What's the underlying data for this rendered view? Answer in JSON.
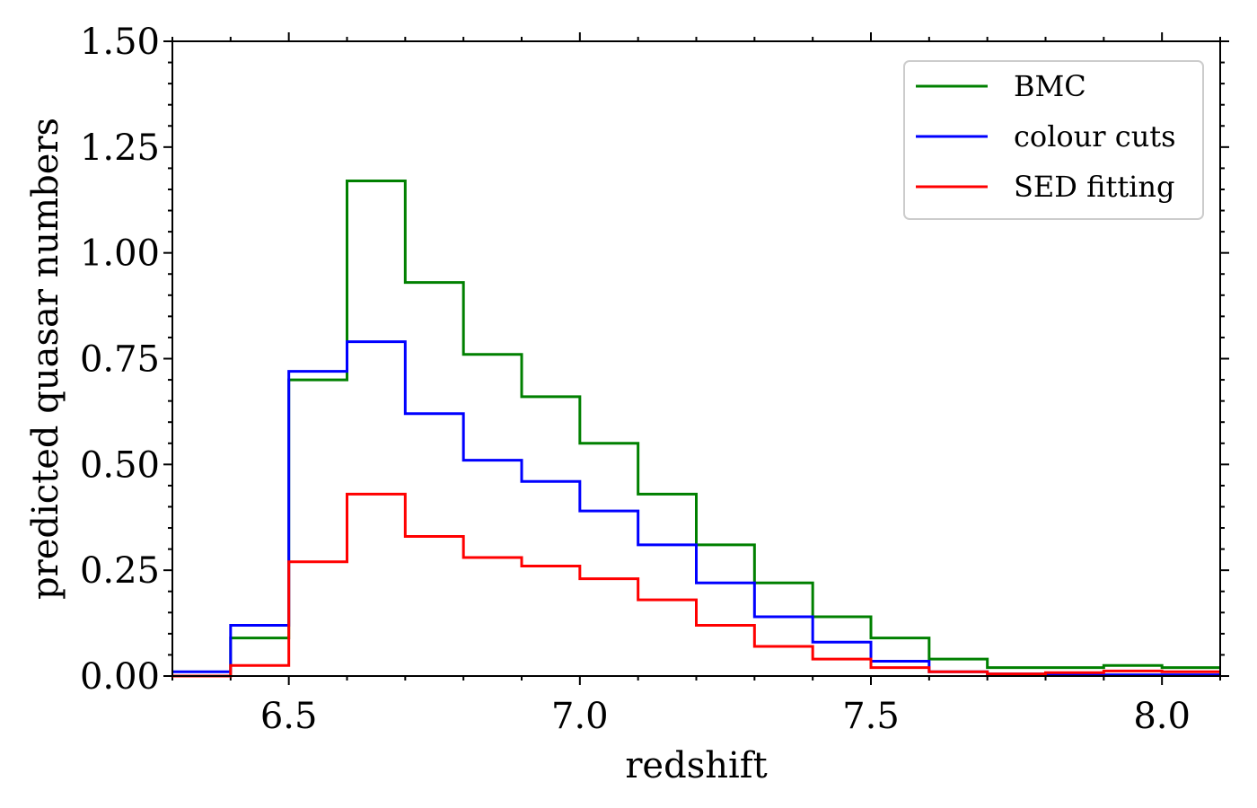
{
  "chart_data": {
    "type": "step-histogram",
    "xlabel": "redshift",
    "ylabel": "predicted quasar numbers",
    "xlim": [
      6.3,
      8.1
    ],
    "ylim": [
      0.0,
      1.5
    ],
    "x_ticks": [
      6.5,
      7.0,
      7.5,
      8.0
    ],
    "x_tick_labels": [
      "6.5",
      "7.0",
      "7.5",
      "8.0"
    ],
    "y_ticks": [
      0.0,
      0.25,
      0.5,
      0.75,
      1.0,
      1.25,
      1.5
    ],
    "y_tick_labels": [
      "0.00",
      "0.25",
      "0.50",
      "0.75",
      "1.00",
      "1.25",
      "1.50"
    ],
    "x_minor_step": 0.1,
    "y_minor_step": 0.05,
    "bin_edges": [
      6.3,
      6.4,
      6.5,
      6.6,
      6.7,
      6.8,
      6.9,
      7.0,
      7.1,
      7.2,
      7.3,
      7.4,
      7.5,
      7.6,
      7.7,
      7.8,
      7.9,
      8.0,
      8.1
    ],
    "legend_position": "top-right",
    "series": [
      {
        "name": "BMC",
        "color": "#008000",
        "values": [
          0.0,
          0.09,
          0.7,
          1.17,
          0.93,
          0.76,
          0.66,
          0.55,
          0.43,
          0.31,
          0.22,
          0.14,
          0.09,
          0.04,
          0.02,
          0.02,
          0.025,
          0.02
        ]
      },
      {
        "name": "colour cuts",
        "color": "#0000ff",
        "values": [
          0.01,
          0.12,
          0.72,
          0.79,
          0.62,
          0.51,
          0.46,
          0.39,
          0.31,
          0.22,
          0.14,
          0.08,
          0.035,
          0.01,
          0.005,
          0.003,
          0.003,
          0.003
        ]
      },
      {
        "name": "SED fitting",
        "color": "#ff0000",
        "values": [
          0.0,
          0.025,
          0.27,
          0.43,
          0.33,
          0.28,
          0.26,
          0.23,
          0.18,
          0.12,
          0.07,
          0.04,
          0.02,
          0.01,
          0.005,
          0.008,
          0.012,
          0.01
        ]
      }
    ]
  }
}
